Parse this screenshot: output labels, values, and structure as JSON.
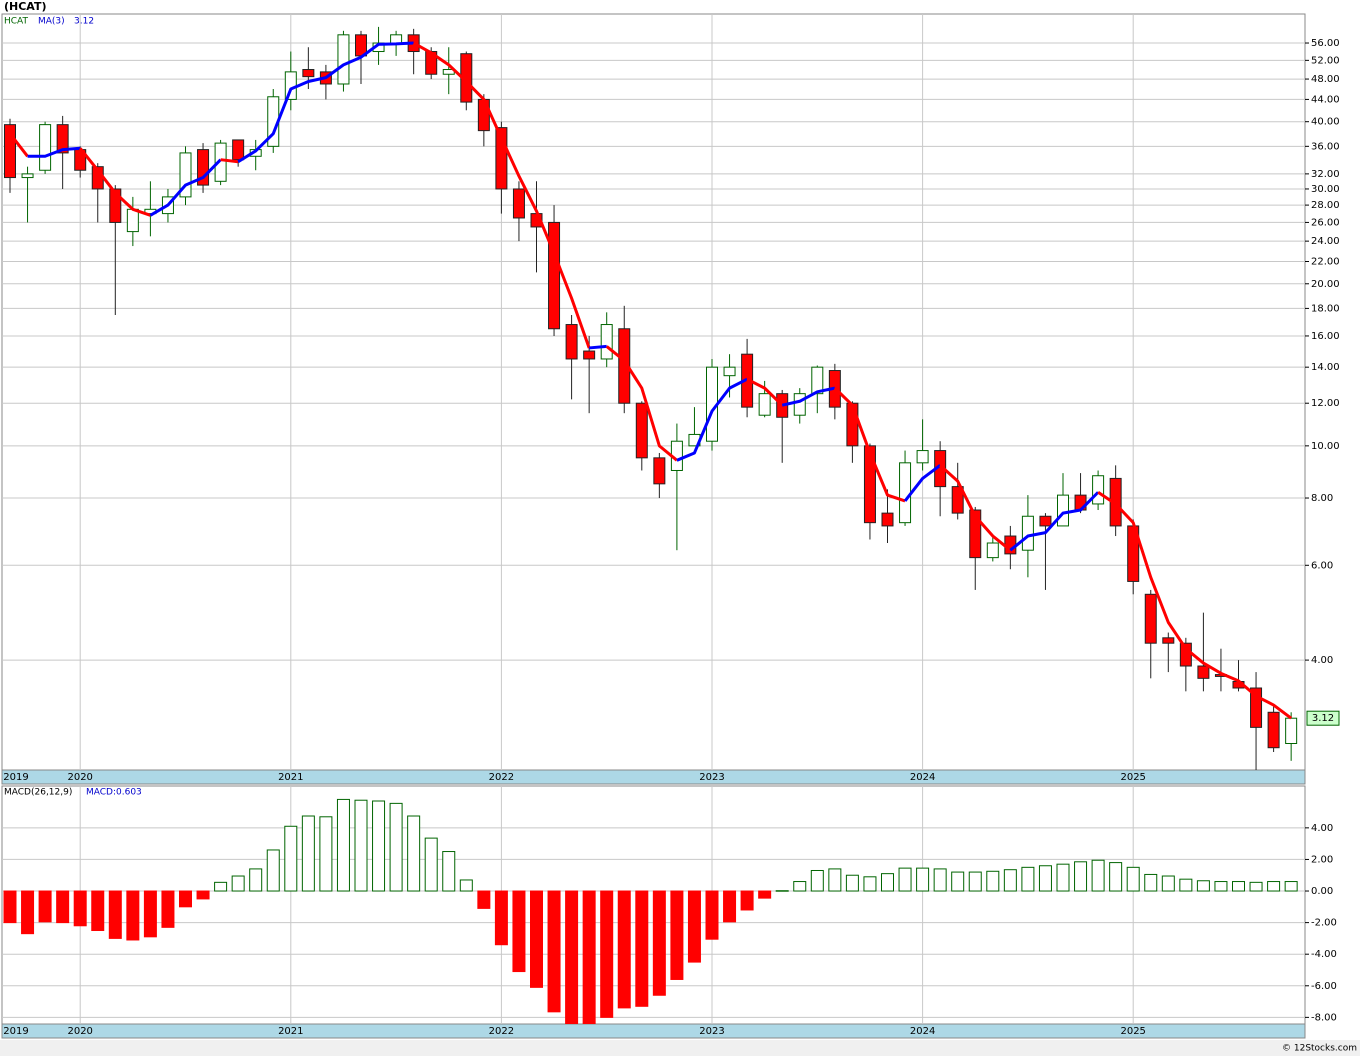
{
  "title": "(HCAT)",
  "credit": "© 12Stocks.com",
  "chart_data": [
    {
      "type": "candlestick",
      "symbol": "HCAT",
      "legend_value": "3.12",
      "log": true,
      "grid": true,
      "up_color": "#006400",
      "down_color": "#ff0000",
      "categories": [
        "2019",
        null,
        null,
        null,
        "2020",
        null,
        null,
        null,
        null,
        null,
        null,
        null,
        null,
        null,
        null,
        null,
        "2021",
        null,
        null,
        null,
        null,
        null,
        null,
        null,
        null,
        null,
        null,
        null,
        "2022",
        null,
        null,
        null,
        null,
        null,
        null,
        null,
        null,
        null,
        null,
        null,
        "2023",
        null,
        null,
        null,
        null,
        null,
        null,
        null,
        null,
        null,
        null,
        null,
        "2024",
        null,
        null,
        null,
        null,
        null,
        null,
        null,
        null,
        null,
        null,
        null,
        "2025",
        null,
        null,
        null,
        null,
        null,
        null,
        null,
        null,
        null
      ],
      "open": [
        39.5,
        31.5,
        32.5,
        39.5,
        35.5,
        33,
        30,
        25,
        27,
        27,
        29,
        35.5,
        31,
        37,
        34.5,
        36,
        44,
        50,
        49.5,
        47,
        58,
        54,
        56,
        58,
        54,
        49,
        53.5,
        44,
        39,
        30,
        27,
        26,
        16.8,
        15,
        14.5,
        16.5,
        12,
        9.5,
        9,
        10,
        10.2,
        13.5,
        14.8,
        11.4,
        12.5,
        11.4,
        12.5,
        13.8,
        12,
        10,
        7.5,
        7.2,
        9.3,
        9.8,
        8.4,
        7.6,
        6.2,
        6.8,
        6.4,
        7.4,
        7.1,
        8.1,
        7.8,
        8.7,
        7.1,
        5.3,
        4.4,
        4.3,
        3.9,
        3.76,
        3.65,
        3.55,
        3.2,
        2.8
      ],
      "high": [
        40.5,
        33,
        40,
        41,
        36,
        33.5,
        30.5,
        29,
        31,
        30,
        36,
        36.5,
        37,
        37,
        37,
        46,
        54,
        55,
        51,
        59,
        59,
        60,
        59,
        59.5,
        55,
        55,
        54,
        45,
        40,
        31,
        31,
        28,
        17.5,
        16,
        17.7,
        18.2,
        12.1,
        9.7,
        11,
        11.8,
        14.5,
        14.8,
        15.8,
        13.2,
        12.7,
        12.8,
        14.1,
        14.2,
        12.1,
        10.1,
        8.3,
        9.8,
        11.2,
        10.2,
        9.3,
        7.7,
        6.8,
        7.1,
        8.1,
        7.5,
        8.9,
        8.9,
        9,
        9.2,
        7.3,
        5.4,
        4.5,
        4.4,
        4.9,
        4.2,
        4,
        3.8,
        3.3,
        3.2
      ],
      "low": [
        29.5,
        26,
        32,
        30,
        31.5,
        26,
        17.5,
        23.5,
        24.5,
        26,
        28,
        29.5,
        30.5,
        33,
        32.5,
        35,
        42,
        46,
        44,
        45.5,
        47,
        51,
        53,
        49,
        48,
        45,
        42,
        36,
        27,
        24,
        21,
        16,
        12.2,
        11.5,
        14,
        11.5,
        9,
        8,
        6.4,
        10,
        9.8,
        12.3,
        11.3,
        11.3,
        9.3,
        11,
        11.5,
        11.2,
        9.3,
        6.7,
        6.6,
        7.1,
        9,
        7.4,
        7.3,
        5.4,
        6.1,
        5.9,
        5.7,
        5.4,
        7.1,
        7.5,
        7.6,
        6.8,
        5.3,
        3.7,
        3.8,
        3.5,
        3.5,
        3.5,
        3.5,
        2.5,
        2.7,
        2.6
      ],
      "close": [
        31.5,
        32,
        39.5,
        35,
        32.5,
        30,
        26,
        27.5,
        27.5,
        29,
        35,
        30.5,
        36.5,
        34,
        35.5,
        44.5,
        49.5,
        48.5,
        47,
        58,
        53,
        56,
        58,
        54,
        49,
        50,
        43.5,
        38.5,
        30,
        26.5,
        25.5,
        16.5,
        14.5,
        14.5,
        16.8,
        12,
        9.5,
        8.5,
        10.2,
        10.5,
        14,
        14,
        11.8,
        12.5,
        11.3,
        12.5,
        14,
        11.8,
        10,
        7.2,
        7.1,
        9.3,
        9.8,
        8.4,
        7.5,
        6.2,
        6.6,
        6.3,
        7.4,
        7.1,
        8.1,
        7.6,
        8.8,
        7.1,
        5.6,
        4.3,
        4.3,
        3.9,
        3.7,
        3.73,
        3.55,
        3.0,
        2.75,
        3.12
      ],
      "ma": {
        "name": "MA(3)",
        "up_color": "#0000ff",
        "down_color": "#ff0000",
        "values": [
          38,
          34.5,
          34.5,
          35.5,
          35.7,
          32.5,
          29.5,
          27.5,
          26.8,
          28,
          30.5,
          31.5,
          34,
          33.7,
          35.3,
          38,
          46,
          47.5,
          48.3,
          51,
          52.7,
          55.7,
          55.8,
          56,
          53.7,
          51,
          47.5,
          44,
          37.3,
          31.7,
          27.3,
          22.8,
          18.8,
          15.2,
          15.3,
          14.4,
          12.8,
          10,
          9.4,
          9.7,
          11.6,
          12.8,
          13.3,
          12.8,
          11.9,
          12.1,
          12.6,
          12.8,
          11.9,
          9.7,
          8.1,
          7.9,
          8.7,
          9.2,
          8.6,
          7.4,
          6.8,
          6.4,
          6.8,
          6.9,
          7.5,
          7.6,
          8.2,
          7.8,
          7.2,
          5.7,
          4.7,
          4.2,
          3.95,
          3.78,
          3.66,
          3.43,
          3.3,
          3.12
        ]
      },
      "last_price": 3.12,
      "ylim": [
        2.5,
        63.4
      ],
      "yticks": [
        {
          "value": 56,
          "label": "56.00"
        },
        {
          "value": 52,
          "label": "52.00"
        },
        {
          "value": 48,
          "label": "48.00"
        },
        {
          "value": 44,
          "label": "44.00"
        },
        {
          "value": 40,
          "label": "40.00"
        },
        {
          "value": 36,
          "label": "36.00"
        },
        {
          "value": 32,
          "label": "32.00"
        },
        {
          "value": 30,
          "label": "30.00"
        },
        {
          "value": 28,
          "label": "28.00"
        },
        {
          "value": 26,
          "label": "26.00"
        },
        {
          "value": 24,
          "label": "24.00"
        },
        {
          "value": 22,
          "label": "22.00"
        },
        {
          "value": 20,
          "label": "20.00"
        },
        {
          "value": 18,
          "label": "18.00"
        },
        {
          "value": 16,
          "label": "16.00"
        },
        {
          "value": 14,
          "label": "14.00"
        },
        {
          "value": 12,
          "label": "12.00"
        },
        {
          "value": 10,
          "label": "10.00"
        },
        {
          "value": 8,
          "label": "8.00"
        },
        {
          "value": 6,
          "label": "6.00"
        },
        {
          "value": 4,
          "label": "4.00"
        }
      ]
    },
    {
      "type": "bar",
      "name": "MACD(26,12,9)",
      "legend_value": "MACD:0.603",
      "grid": true,
      "up_color": "#006400",
      "down_color": "#ff0000",
      "categories": [
        "2019",
        null,
        null,
        null,
        "2020",
        null,
        null,
        null,
        null,
        null,
        null,
        null,
        null,
        null,
        null,
        null,
        "2021",
        null,
        null,
        null,
        null,
        null,
        null,
        null,
        null,
        null,
        null,
        null,
        "2022",
        null,
        null,
        null,
        null,
        null,
        null,
        null,
        null,
        null,
        null,
        null,
        "2023",
        null,
        null,
        null,
        null,
        null,
        null,
        null,
        null,
        null,
        null,
        null,
        "2024",
        null,
        null,
        null,
        null,
        null,
        null,
        null,
        null,
        null,
        null,
        null,
        "2025",
        null,
        null,
        null,
        null,
        null,
        null,
        null,
        null,
        null
      ],
      "values": [
        -2.0,
        -2.7,
        -1.95,
        -2.0,
        -2.2,
        -2.5,
        -3.0,
        -3.1,
        -2.9,
        -2.3,
        -1.0,
        -0.5,
        0.55,
        0.95,
        1.4,
        2.6,
        4.1,
        4.75,
        4.7,
        5.8,
        5.75,
        5.7,
        5.55,
        4.75,
        3.35,
        2.5,
        0.7,
        -1.1,
        -3.4,
        -5.1,
        -6.1,
        -7.65,
        -8.6,
        -8.5,
        -8.0,
        -7.4,
        -7.3,
        -6.6,
        -5.6,
        -4.5,
        -3.05,
        -1.95,
        -1.2,
        -0.45,
        0.02,
        0.6,
        1.3,
        1.4,
        1.0,
        0.9,
        1.1,
        1.45,
        1.45,
        1.4,
        1.2,
        1.2,
        1.25,
        1.35,
        1.5,
        1.6,
        1.7,
        1.85,
        1.95,
        1.8,
        1.5,
        1.05,
        0.95,
        0.75,
        0.65,
        0.6,
        0.6,
        0.55,
        0.6,
        0.6
      ],
      "ylim": [
        -8.42,
        6.65
      ],
      "yticks": [
        {
          "value": 4,
          "label": "4.00"
        },
        {
          "value": 2,
          "label": "2.00"
        },
        {
          "value": 0,
          "label": "0.00"
        },
        {
          "value": -2,
          "label": "-2.00"
        },
        {
          "value": -4,
          "label": "-4.00"
        },
        {
          "value": -6,
          "label": "-6.00"
        },
        {
          "value": -8,
          "label": "-8.00"
        }
      ]
    }
  ]
}
